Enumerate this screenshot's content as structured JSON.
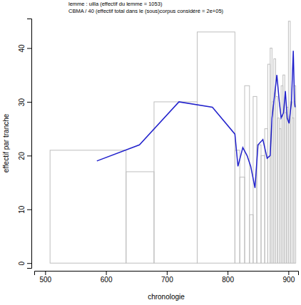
{
  "chart_data": {
    "type": "histogram",
    "title": "lemme : uilla (effectif du lemme = 1053)",
    "subtitle": "CBMA / 40  (effectif total dans le (sous)corpus considéré  = 2e+05)",
    "x_label": "chronologie",
    "y_label": "effectif par tranche",
    "bins": [
      508,
      633,
      679,
      750,
      812,
      820,
      828,
      836,
      842,
      848,
      855,
      861,
      866,
      870,
      873,
      876,
      879,
      882,
      885,
      888,
      891,
      894,
      897,
      900,
      903,
      906,
      909,
      912
    ],
    "values": [
      21,
      17,
      30,
      43,
      21,
      16,
      33,
      9,
      31,
      22,
      20,
      25,
      37,
      40,
      30,
      38,
      31,
      27,
      25,
      33,
      35,
      28,
      29,
      45,
      30,
      27,
      33
    ],
    "color": "#bebebe",
    "series": [
      {
        "type": "line",
        "color": "#2222cc",
        "x": [
          585,
          655,
          720,
          775,
          812,
          817,
          825,
          832,
          838,
          845,
          850,
          858,
          865,
          870,
          873,
          878,
          881,
          885,
          888,
          892,
          895,
          898,
          901,
          905,
          908,
          910,
          911
        ],
        "values": [
          19,
          22,
          30,
          29,
          24,
          18,
          21.5,
          20,
          18,
          14,
          22,
          23,
          19.5,
          20,
          27,
          32,
          35,
          30,
          27,
          28,
          32,
          27,
          26,
          30,
          39.5,
          30,
          29
        ]
      }
    ],
    "xlim": [
      482,
      916
    ],
    "ylim": [
      -0.9,
      45.5
    ],
    "xticks": [
      500,
      600,
      700,
      800,
      900
    ],
    "yticks": [
      0,
      10,
      20,
      30,
      40
    ]
  }
}
